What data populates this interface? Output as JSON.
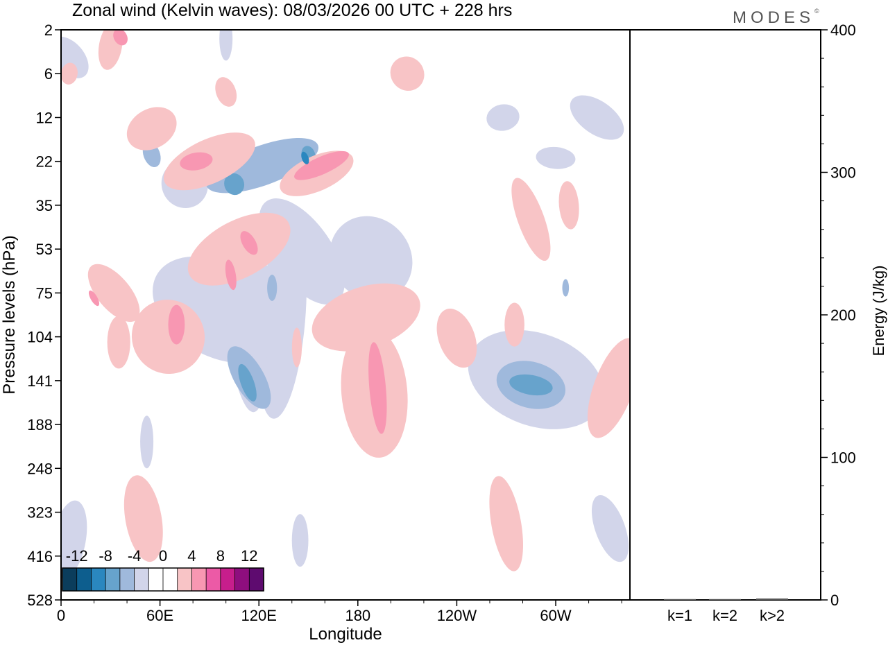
{
  "chart_data": [
    {
      "type": "heatmap",
      "title": "Zonal wind (Kelvin waves):  08/03/2026  00 UTC  + 228 hrs",
      "xlabel": "Longitude",
      "ylabel": "Pressure levels (hPa)",
      "x_ticks": [
        "0",
        "60E",
        "120E",
        "180",
        "120W",
        "60W"
      ],
      "x_tick_values": [
        0,
        60,
        120,
        180,
        240,
        300
      ],
      "xlim": [
        0,
        345
      ],
      "y_ticks": [
        "2",
        "6",
        "12",
        "22",
        "35",
        "53",
        "75",
        "104",
        "141",
        "188",
        "248",
        "323",
        "416",
        "528"
      ],
      "y_scale": "log-like (pressure levels)",
      "colorbar": {
        "labels": [
          "-12",
          "-8",
          "-4",
          "0",
          "4",
          "8",
          "12"
        ],
        "colors": [
          "#0b3d5c",
          "#0d5e8e",
          "#2a87bf",
          "#67a3cc",
          "#9fb9dc",
          "#d2d5ea",
          "#ffffff",
          "#ffffff",
          "#f8c4c6",
          "#f897b2",
          "#ec5aa6",
          "#c71e8c",
          "#8e0e7e",
          "#5e0b6f"
        ]
      },
      "contours": [
        {
          "level": "-2",
          "color": "#d2d5ea",
          "blobs": [
            {
              "lon": 95,
              "lev": 85,
              "dlon": 28,
              "dlev": 3.2,
              "rot": -60
            },
            {
              "lon": 112,
              "lev": 92,
              "dlon": 12,
              "dlev": 4.2,
              "rot": -5
            },
            {
              "lon": 134,
              "lev": 92,
              "dlon": 14,
              "dlev": 4.5,
              "rot": 5
            },
            {
              "lon": 188,
              "lev": 57,
              "dlon": 24,
              "dlev": 2.0,
              "rot": -40
            },
            {
              "lon": 146,
              "lev": 54,
              "dlon": 18,
              "dlev": 2.8,
              "rot": -35
            },
            {
              "lon": 123,
              "lev": 86,
              "dlon": 6,
              "dlev": 2.2,
              "rot": 0
            },
            {
              "lon": 288,
              "lev": 140,
              "dlon": 28,
              "dlev": 3.2,
              "rot": -70
            },
            {
              "lon": 333,
              "lev": 355,
              "dlon": 9,
              "dlev": 1.6,
              "rot": -20
            },
            {
              "lon": 5,
              "lev": 378,
              "dlon": 10,
              "dlev": 1.8,
              "rot": 10
            },
            {
              "lon": 145,
              "lev": 380,
              "dlon": 5,
              "dlev": 1.2,
              "rot": 0
            },
            {
              "lon": 325,
              "lev": 12,
              "dlon": 10,
              "dlev": 1.4,
              "rot": -55
            },
            {
              "lon": 5,
              "lev": 4,
              "dlon": 9,
              "dlev": 1.1,
              "rot": -40
            },
            {
              "lon": 75,
              "lev": 28,
              "dlon": 14,
              "dlev": 1.1,
              "rot": -25
            },
            {
              "lon": 268,
              "lev": 12,
              "dlon": 10,
              "dlev": 0.6,
              "rot": -10
            },
            {
              "lon": 100,
              "lev": 2.5,
              "dlon": 4,
              "dlev": 1.0,
              "rot": 0
            },
            {
              "lon": 52,
              "lev": 210,
              "dlon": 4,
              "dlev": 1.2,
              "rot": 0
            },
            {
              "lon": 300,
              "lev": 21,
              "dlon": 12,
              "dlev": 0.5,
              "rot": 5
            },
            {
              "lon": 242,
              "lev": 111,
              "dlon": 4,
              "dlev": 0.9,
              "rot": 0
            }
          ]
        },
        {
          "level": "-4",
          "color": "#9fb9dc",
          "blobs": [
            {
              "lon": 122,
              "lev": 23,
              "dlon": 36,
              "dlev": 0.9,
              "rot": -20
            },
            {
              "lon": 114,
              "lev": 138,
              "dlon": 9,
              "dlev": 1.6,
              "rot": -30
            },
            {
              "lon": 285,
              "lev": 145,
              "dlon": 14,
              "dlev": 1.6,
              "rot": -75
            },
            {
              "lon": 55,
              "lev": 20,
              "dlon": 5,
              "dlev": 0.6,
              "rot": -20
            },
            {
              "lon": 128,
              "lev": 72,
              "dlon": 3,
              "dlev": 0.6,
              "rot": 0
            },
            {
              "lon": 306,
              "lev": 72,
              "dlon": 2,
              "dlev": 0.4,
              "rot": 0
            }
          ]
        },
        {
          "level": "-6",
          "color": "#67a3cc",
          "blobs": [
            {
              "lon": 105,
              "lev": 28,
              "dlon": 6,
              "dlev": 0.5,
              "rot": -20
            },
            {
              "lon": 150,
              "lev": 20,
              "dlon": 4,
              "dlev": 0.4,
              "rot": -20
            },
            {
              "lon": 113,
              "lev": 143,
              "dlon": 4,
              "dlev": 0.9,
              "rot": -20
            },
            {
              "lon": 285,
              "lev": 145,
              "dlon": 6,
              "dlev": 1.0,
              "rot": -80
            }
          ]
        },
        {
          "level": "2",
          "color": "#f8c4c6",
          "blobs": [
            {
              "lon": 65,
              "lev": 104,
              "dlon": 22,
              "dlev": 1.7,
              "rot": -25
            },
            {
              "lon": 108,
              "lev": 53,
              "dlon": 34,
              "dlev": 1.3,
              "rot": -28
            },
            {
              "lon": 155,
              "lev": 25,
              "dlon": 24,
              "dlev": 0.8,
              "rot": -24
            },
            {
              "lon": 90,
              "lev": 22,
              "dlon": 30,
              "dlev": 1.0,
              "rot": -25
            },
            {
              "lon": 190,
              "lev": 152,
              "dlon": 20,
              "dlev": 3.0,
              "rot": -5
            },
            {
              "lon": 185,
              "lev": 90,
              "dlon": 34,
              "dlev": 1.4,
              "rot": -18
            },
            {
              "lon": 32,
              "lev": 75,
              "dlon": 10,
              "dlev": 1.6,
              "rot": -40
            },
            {
              "lon": 35,
              "lev": 108,
              "dlon": 7,
              "dlev": 1.2,
              "rot": 0
            },
            {
              "lon": 50,
              "lev": 335,
              "dlon": 11,
              "dlev": 2.0,
              "rot": -10
            },
            {
              "lon": 270,
              "lev": 345,
              "dlon": 9,
              "dlev": 2.2,
              "rot": -10
            },
            {
              "lon": 335,
              "lev": 148,
              "dlon": 12,
              "dlev": 2.4,
              "rot": 20
            },
            {
              "lon": 285,
              "lev": 40,
              "dlon": 8,
              "dlev": 2.0,
              "rot": -20
            },
            {
              "lon": 308,
              "lev": 35,
              "dlon": 6,
              "dlev": 1.1,
              "rot": -5
            },
            {
              "lon": 30,
              "lev": 3,
              "dlon": 7,
              "dlev": 1.1,
              "rot": 10
            },
            {
              "lon": 210,
              "lev": 6,
              "dlon": 10,
              "dlev": 0.8,
              "rot": -40
            },
            {
              "lon": 100,
              "lev": 8,
              "dlon": 6,
              "dlev": 0.7,
              "rot": -20
            },
            {
              "lon": 55,
              "lev": 14,
              "dlon": 16,
              "dlev": 0.9,
              "rot": -30
            },
            {
              "lon": 275,
              "lev": 95,
              "dlon": 6,
              "dlev": 1.0,
              "rot": 0
            },
            {
              "lon": 143,
              "lev": 112,
              "dlon": 3,
              "dlev": 0.9,
              "rot": 0
            },
            {
              "lon": 240,
              "lev": 105,
              "dlon": 11,
              "dlev": 1.4,
              "rot": -20
            },
            {
              "lon": 5,
              "lev": 6,
              "dlon": 5,
              "dlev": 0.5,
              "rot": 10
            }
          ]
        },
        {
          "level": "4",
          "color": "#f897b2",
          "blobs": [
            {
              "lon": 82,
              "lev": 22,
              "dlon": 10,
              "dlev": 0.4,
              "rot": -10
            },
            {
              "lon": 158,
              "lev": 23,
              "dlon": 18,
              "dlev": 0.4,
              "rot": -24
            },
            {
              "lon": 192,
              "lev": 148,
              "dlon": 5,
              "dlev": 2.1,
              "rot": -5
            },
            {
              "lon": 114,
              "lev": 50,
              "dlon": 4,
              "dlev": 0.6,
              "rot": -30
            },
            {
              "lon": 103,
              "lev": 65,
              "dlon": 3,
              "dlev": 0.7,
              "rot": -10
            },
            {
              "lon": 70,
              "lev": 95,
              "dlon": 5,
              "dlev": 0.9,
              "rot": 0
            },
            {
              "lon": 20,
              "lev": 78,
              "dlon": 2,
              "dlev": 0.4,
              "rot": -30
            },
            {
              "lon": 36,
              "lev": 2.4,
              "dlon": 4,
              "dlev": 0.4,
              "rot": -30
            }
          ]
        },
        {
          "level": "-8",
          "color": "#2a87bf",
          "blobs": [
            {
              "lon": 148,
              "lev": 21,
              "dlon": 2,
              "dlev": 0.3,
              "rot": -20
            }
          ]
        }
      ]
    },
    {
      "type": "bar",
      "ylabel": "Energy (J/kg)",
      "categories": [
        "k=1",
        "k=2",
        "k>2"
      ],
      "values": [
        0,
        0.5,
        1
      ],
      "ylim": [
        0,
        400
      ],
      "y_ticks": [
        "0",
        "100",
        "200",
        "300",
        "400"
      ]
    }
  ],
  "logo": {
    "text": "MODES",
    "mark": "©"
  }
}
